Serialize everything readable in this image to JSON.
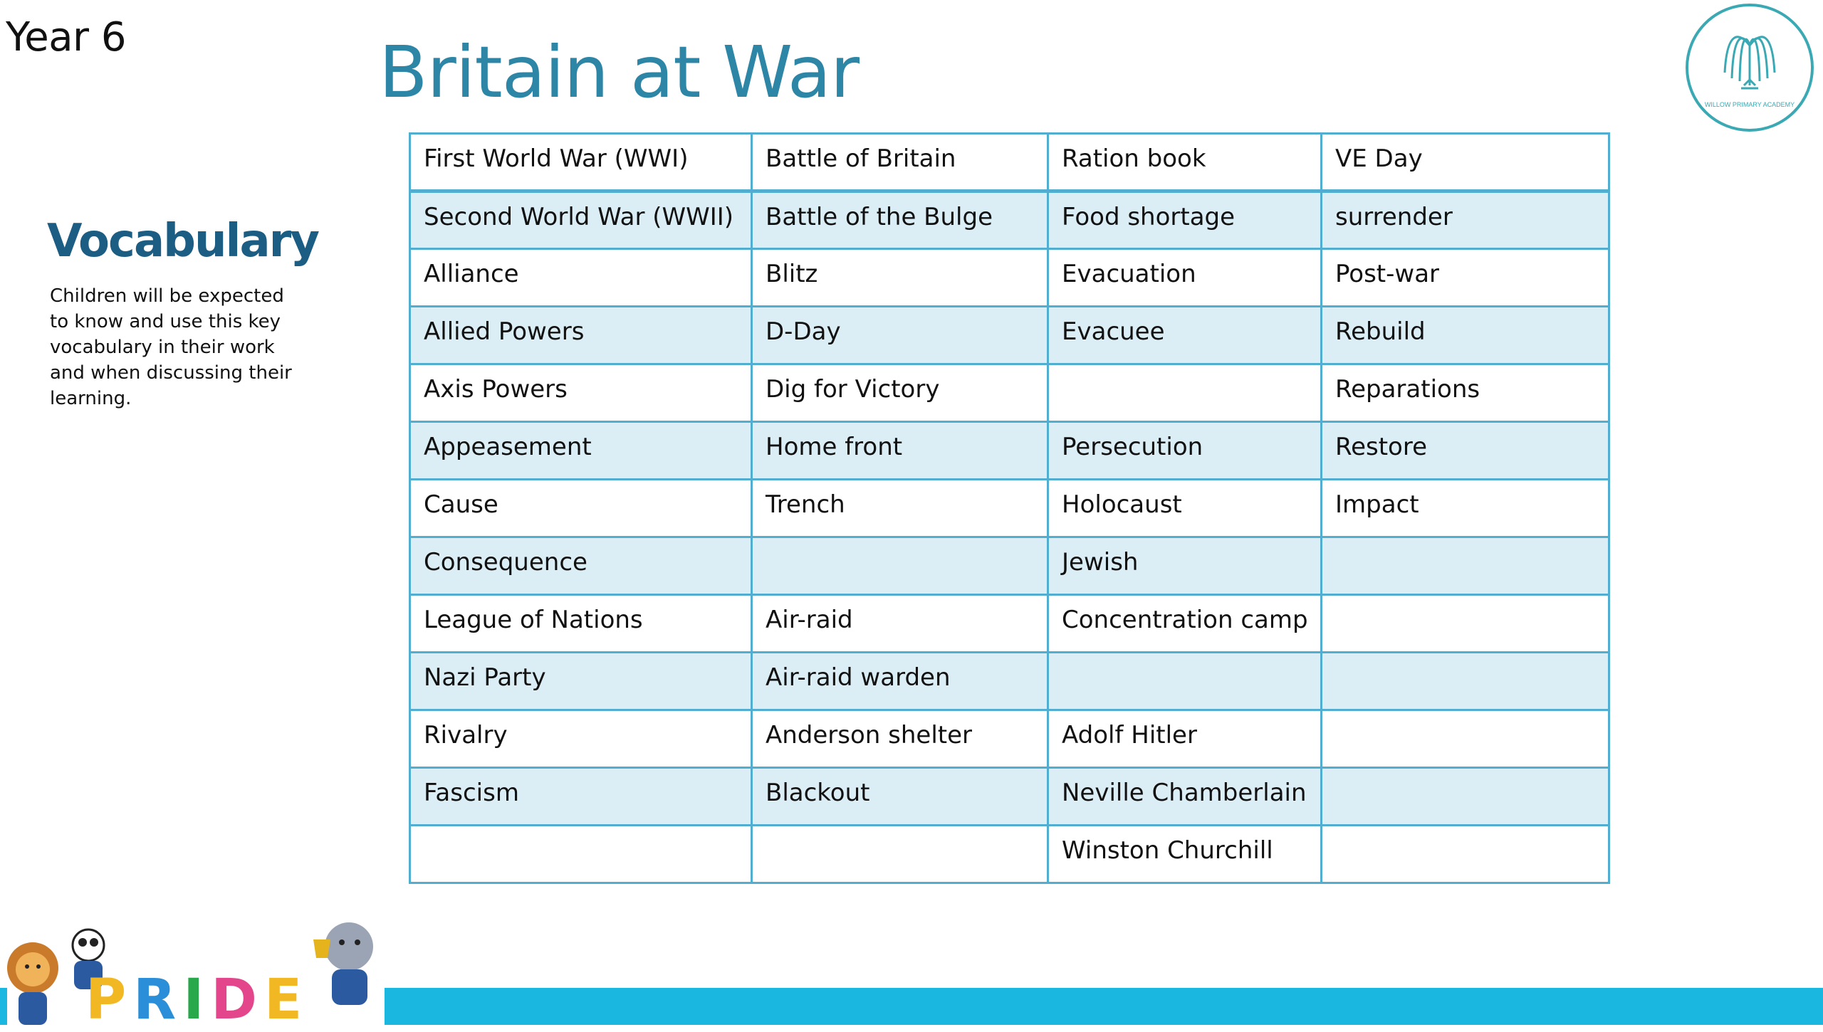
{
  "header": {
    "year": "Year 6",
    "title": "Britain at War"
  },
  "sidebar": {
    "heading": "Vocabulary",
    "description": "Children will be expected to know and use this key vocabulary in their work and when discussing their learning."
  },
  "logo": {
    "icon": "willow-tree-icon",
    "text": "WILLOW PRIMARY ACADEMY"
  },
  "footer": {
    "banner_text": "PRIDE",
    "banner_icon": "pride-mascots-icon"
  },
  "colors": {
    "title": "#2e86a6",
    "heading": "#1c5d84",
    "border": "#52aed0",
    "alt_row": "#dbeef6",
    "bar": "#1ab7e0"
  },
  "table": {
    "rows": [
      [
        "First World War (WWI)",
        "Battle of Britain",
        "Ration book",
        "VE Day"
      ],
      [
        "Second World War (WWII)",
        "Battle of the Bulge",
        "Food shortage",
        "surrender"
      ],
      [
        "Alliance",
        "Blitz",
        "Evacuation",
        "Post-war"
      ],
      [
        "Allied Powers",
        "D-Day",
        "Evacuee",
        "Rebuild"
      ],
      [
        "Axis Powers",
        "Dig for Victory",
        "",
        "Reparations"
      ],
      [
        "Appeasement",
        "Home front",
        "Persecution",
        "Restore"
      ],
      [
        "Cause",
        "Trench",
        "Holocaust",
        "Impact"
      ],
      [
        "Consequence",
        "",
        "Jewish",
        ""
      ],
      [
        "League of Nations",
        "Air-raid",
        "Concentration camp",
        ""
      ],
      [
        "Nazi Party",
        "Air-raid warden",
        "",
        ""
      ],
      [
        "Rivalry",
        "Anderson shelter",
        "Adolf Hitler",
        ""
      ],
      [
        "Fascism",
        "Blackout",
        "Neville Chamberlain",
        ""
      ],
      [
        "",
        "",
        "Winston Churchill",
        ""
      ]
    ]
  }
}
